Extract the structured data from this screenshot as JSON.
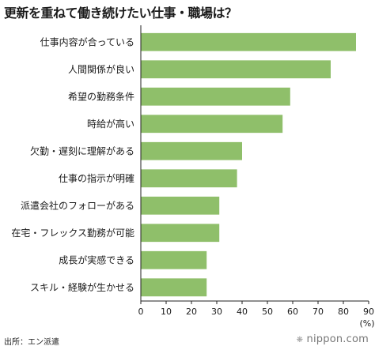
{
  "chart_data": {
    "type": "bar",
    "orientation": "horizontal",
    "title": "更新を重ねて働き続けたい仕事・職場は？",
    "categories": [
      "仕事内容が合っている",
      "人間関係が良い",
      "希望の勤務条件",
      "時給が高い",
      "欠勤・遅刻に理解がある",
      "仕事の指示が明確",
      "派遣会社のフォローがある",
      "在宅・フレックス勤務が可能",
      "成長が実感できる",
      "スキル・経験が生かせる"
    ],
    "values": [
      85,
      75,
      59,
      56,
      40,
      38,
      31,
      31,
      26,
      26
    ],
    "xlim": [
      0,
      90
    ],
    "ticks": [
      "0",
      "10",
      "20",
      "30",
      "40",
      "50",
      "60",
      "70",
      "80",
      "90"
    ],
    "unit": "(%)",
    "grid": false,
    "bar_color": "#8fbf6a"
  },
  "source": "出所：エン派遣",
  "brand": {
    "mark": "❋",
    "name": "nippon.com"
  }
}
